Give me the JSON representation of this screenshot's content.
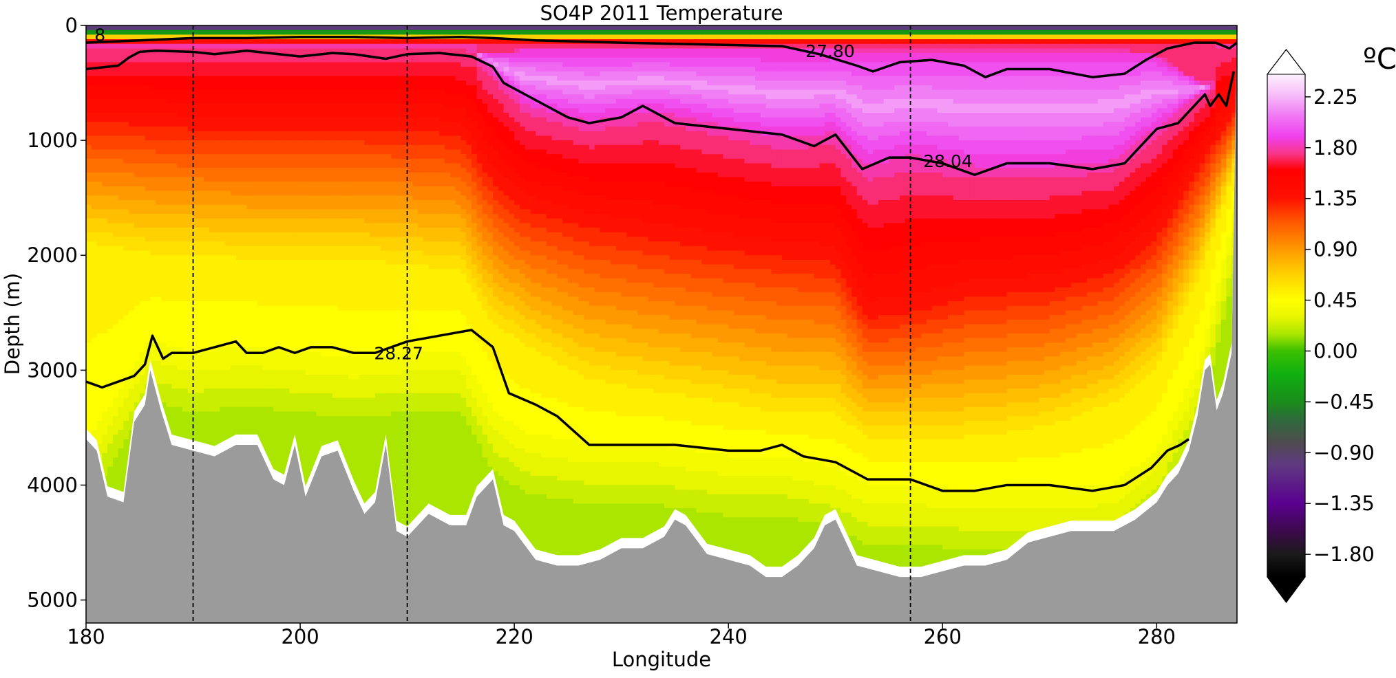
{
  "chart_data": {
    "type": "heatmap",
    "title": "SO4P 2011 Temperature",
    "xlabel": "Longitude",
    "ylabel": "Depth (m)",
    "xlim": [
      180,
      287.5
    ],
    "ylim": [
      5200,
      0
    ],
    "x_ticks": [
      180,
      200,
      220,
      240,
      260,
      280
    ],
    "y_ticks": [
      0,
      1000,
      2000,
      3000,
      4000,
      5000
    ],
    "colorbar": {
      "unit_label": "ºC",
      "ticks": [
        "−1.80",
        "−1.35",
        "−0.90",
        "−0.45",
        "0.00",
        "0.45",
        "0.90",
        "1.35",
        "1.80",
        "2.25"
      ],
      "tick_values": [
        -1.8,
        -1.35,
        -0.9,
        -0.45,
        0.0,
        0.45,
        0.9,
        1.35,
        1.8,
        2.25
      ],
      "range": [
        -2.0,
        2.45
      ],
      "extend": "both",
      "stops": [
        {
          "v": -2.0,
          "c": "#000000"
        },
        {
          "v": -1.8,
          "c": "#1a1a1a"
        },
        {
          "v": -1.6,
          "c": "#3b0a4a"
        },
        {
          "v": -1.35,
          "c": "#5a0090"
        },
        {
          "v": -1.0,
          "c": "#5f3a80"
        },
        {
          "v": -0.8,
          "c": "#4d4d4d"
        },
        {
          "v": -0.6,
          "c": "#2d6b3a"
        },
        {
          "v": -0.45,
          "c": "#1a8c1a"
        },
        {
          "v": -0.2,
          "c": "#10b010"
        },
        {
          "v": 0.0,
          "c": "#3cbf00"
        },
        {
          "v": 0.15,
          "c": "#aae600"
        },
        {
          "v": 0.3,
          "c": "#e8f500"
        },
        {
          "v": 0.45,
          "c": "#ffff00"
        },
        {
          "v": 0.7,
          "c": "#ffcc00"
        },
        {
          "v": 0.9,
          "c": "#ff9900"
        },
        {
          "v": 1.15,
          "c": "#ff5500"
        },
        {
          "v": 1.35,
          "c": "#ff1100"
        },
        {
          "v": 1.6,
          "c": "#ff0000"
        },
        {
          "v": 1.75,
          "c": "#f8368a"
        },
        {
          "v": 1.9,
          "c": "#f040ee"
        },
        {
          "v": 2.1,
          "c": "#f07ef4"
        },
        {
          "v": 2.25,
          "c": "#f7b8f9"
        },
        {
          "v": 2.45,
          "c": "#fdf1fd"
        }
      ]
    },
    "section_columns": [
      {
        "lon": 180,
        "t_surface": -1.0,
        "pink_top": null,
        "pink_bottom": null,
        "red_bottom": 800,
        "orange_bottom": 1900,
        "yellow_bottom": 3600,
        "bottom": 3600
      },
      {
        "lon": 183,
        "t_surface": -1.0,
        "pink_top": null,
        "pink_bottom": null,
        "red_bottom": 800,
        "orange_bottom": 1950,
        "yellow_bottom": 3150,
        "bottom": 4150
      },
      {
        "lon": 186,
        "t_surface": -1.0,
        "pink_top": null,
        "pink_bottom": null,
        "red_bottom": 820,
        "orange_bottom": 2000,
        "yellow_bottom": 2700,
        "bottom": 3050
      },
      {
        "lon": 190,
        "t_surface": -1.0,
        "pink_top": null,
        "pink_bottom": null,
        "red_bottom": 850,
        "orange_bottom": 2000,
        "yellow_bottom": 2800,
        "bottom": 3700
      },
      {
        "lon": 195,
        "t_surface": -1.0,
        "pink_top": null,
        "pink_bottom": null,
        "red_bottom": 850,
        "orange_bottom": 2050,
        "yellow_bottom": 2750,
        "bottom": 3650
      },
      {
        "lon": 200,
        "t_surface": -1.0,
        "pink_top": null,
        "pink_bottom": null,
        "red_bottom": 850,
        "orange_bottom": 2050,
        "yellow_bottom": 2800,
        "bottom": 4100
      },
      {
        "lon": 205,
        "t_surface": -1.0,
        "pink_top": null,
        "pink_bottom": null,
        "red_bottom": 850,
        "orange_bottom": 2050,
        "yellow_bottom": 2850,
        "bottom": 4250
      },
      {
        "lon": 210,
        "t_surface": -1.0,
        "pink_top": null,
        "pink_bottom": null,
        "red_bottom": 850,
        "orange_bottom": 2100,
        "yellow_bottom": 2800,
        "bottom": 4450
      },
      {
        "lon": 215,
        "t_surface": -1.0,
        "pink_top": null,
        "pink_bottom": null,
        "red_bottom": 900,
        "orange_bottom": 2150,
        "yellow_bottom": 2800,
        "bottom": 4350
      },
      {
        "lon": 218,
        "t_surface": -1.0,
        "pink_top": 250,
        "pink_bottom": 400,
        "red_bottom": 1300,
        "orange_bottom": 2600,
        "yellow_bottom": 3300,
        "bottom": 4200
      },
      {
        "lon": 221,
        "t_surface": -1.0,
        "pink_top": 200,
        "pink_bottom": 700,
        "red_bottom": 1550,
        "orange_bottom": 2800,
        "yellow_bottom": 3500,
        "bottom": 4450
      },
      {
        "lon": 227,
        "t_surface": -1.0,
        "pink_top": 200,
        "pink_bottom": 850,
        "red_bottom": 1700,
        "orange_bottom": 3100,
        "yellow_bottom": 3600,
        "bottom": 4700
      },
      {
        "lon": 233,
        "t_surface": -1.0,
        "pink_top": 200,
        "pink_bottom": 750,
        "red_bottom": 1800,
        "orange_bottom": 3200,
        "yellow_bottom": 3600,
        "bottom": 4450
      },
      {
        "lon": 240,
        "t_surface": -1.0,
        "pink_top": 200,
        "pink_bottom": 900,
        "red_bottom": 1900,
        "orange_bottom": 3300,
        "yellow_bottom": 3700,
        "bottom": 4650
      },
      {
        "lon": 245,
        "t_surface": -1.0,
        "pink_top": 200,
        "pink_bottom": 1000,
        "red_bottom": 1950,
        "orange_bottom": 3400,
        "yellow_bottom": 3700,
        "bottom": 4800
      },
      {
        "lon": 250,
        "t_surface": -1.0,
        "pink_top": 200,
        "pink_bottom": 950,
        "red_bottom": 2000,
        "orange_bottom": 3400,
        "yellow_bottom": 3800,
        "bottom": 4350
      },
      {
        "lon": 253,
        "t_surface": -1.0,
        "pink_top": 200,
        "pink_bottom": 1250,
        "red_bottom": 2500,
        "orange_bottom": 3600,
        "yellow_bottom": 3950,
        "bottom": 4700
      },
      {
        "lon": 257,
        "t_surface": -1.0,
        "pink_top": 200,
        "pink_bottom": 1150,
        "red_bottom": 2450,
        "orange_bottom": 3600,
        "yellow_bottom": 3950,
        "bottom": 4800
      },
      {
        "lon": 263,
        "t_surface": -1.0,
        "pink_top": 200,
        "pink_bottom": 1250,
        "red_bottom": 2300,
        "orange_bottom": 3600,
        "yellow_bottom": 4000,
        "bottom": 4750
      },
      {
        "lon": 270,
        "t_surface": -1.0,
        "pink_top": 200,
        "pink_bottom": 1250,
        "red_bottom": 2250,
        "orange_bottom": 3500,
        "yellow_bottom": 4000,
        "bottom": 4450
      },
      {
        "lon": 276,
        "t_surface": -1.0,
        "pink_top": 200,
        "pink_bottom": 1200,
        "red_bottom": 2100,
        "orange_bottom": 3300,
        "yellow_bottom": 3950,
        "bottom": 4400
      },
      {
        "lon": 280,
        "t_surface": -1.0,
        "pink_top": 250,
        "pink_bottom": 900,
        "red_bottom": 1800,
        "orange_bottom": 3000,
        "yellow_bottom": 3650,
        "bottom": 4150
      },
      {
        "lon": 284,
        "t_surface": -1.0,
        "pink_top": 500,
        "pink_bottom": 600,
        "red_bottom": 1200,
        "orange_bottom": 2200,
        "yellow_bottom": 2900,
        "bottom": 3100
      },
      {
        "lon": 287.5,
        "t_surface": -1.0,
        "pink_top": null,
        "pink_bottom": null,
        "red_bottom": 700,
        "orange_bottom": 1200,
        "yellow_bottom": 1500,
        "bottom": 1500
      }
    ],
    "bathymetry": {
      "lon": [
        180,
        181,
        182,
        183.5,
        184.5,
        185.5,
        186,
        187,
        188,
        190,
        192,
        194,
        196,
        197.5,
        198.5,
        199.5,
        200.5,
        202,
        203.5,
        205,
        206,
        207,
        208,
        209,
        210,
        212,
        214,
        215.5,
        216.5,
        218,
        219,
        220,
        222,
        224,
        226,
        228,
        230,
        232,
        234,
        235,
        236,
        238,
        240,
        242,
        243.5,
        245,
        246.5,
        248,
        249,
        250,
        251,
        252,
        254,
        256,
        258,
        260,
        262,
        264,
        266,
        268,
        270,
        272,
        274,
        276,
        278,
        280,
        281,
        282,
        283,
        283.8,
        284.5,
        285,
        285.6,
        286.2,
        287,
        287.5
      ],
      "depth": [
        3600,
        3700,
        4100,
        4150,
        3450,
        3300,
        3000,
        3350,
        3650,
        3700,
        3750,
        3650,
        3650,
        3950,
        4000,
        3650,
        4100,
        3750,
        3700,
        4050,
        4250,
        4150,
        3650,
        4400,
        4450,
        4250,
        4350,
        4350,
        4100,
        3950,
        4350,
        4400,
        4650,
        4700,
        4700,
        4650,
        4550,
        4550,
        4450,
        4300,
        4350,
        4600,
        4650,
        4700,
        4800,
        4800,
        4700,
        4550,
        4350,
        4300,
        4500,
        4700,
        4750,
        4800,
        4800,
        4750,
        4700,
        4700,
        4650,
        4500,
        4450,
        4400,
        4400,
        4400,
        4300,
        4150,
        4000,
        3900,
        3700,
        3400,
        3000,
        2950,
        3350,
        3200,
        2850,
        0
      ]
    },
    "contour_labels": [
      {
        "text": "28.27",
        "lon": 209.2,
        "depth": 2850
      },
      {
        "text": "27.80",
        "lon": 249.5,
        "depth": 220
      },
      {
        "text": "28.04",
        "lon": 260.5,
        "depth": 1180
      },
      {
        "text": "8",
        "lon": 181.3,
        "depth": 80
      }
    ],
    "contours": [
      {
        "label": "28.27",
        "lon": [
          180,
          181.5,
          183,
          184.5,
          185.5,
          186.2,
          187.2,
          188,
          190,
          192,
          194,
          195,
          196.5,
          198,
          199.5,
          201,
          203,
          205,
          207,
          210,
          213,
          216,
          218,
          219.5,
          222,
          224,
          227,
          230,
          235,
          240,
          243,
          245,
          247,
          250,
          253,
          257,
          260,
          263,
          266,
          270,
          274,
          277,
          279.5,
          281,
          282.2,
          283
        ],
        "depth": [
          3100,
          3150,
          3100,
          3050,
          2950,
          2700,
          2900,
          2850,
          2850,
          2800,
          2750,
          2850,
          2850,
          2800,
          2850,
          2800,
          2800,
          2850,
          2850,
          2750,
          2700,
          2650,
          2800,
          3200,
          3300,
          3400,
          3650,
          3650,
          3650,
          3700,
          3700,
          3650,
          3750,
          3800,
          3950,
          3950,
          4050,
          4050,
          4000,
          4000,
          4050,
          4000,
          3850,
          3700,
          3650,
          3600
        ]
      },
      {
        "label": "28.04",
        "lon": [
          180,
          183,
          184,
          185,
          186.5,
          190,
          192,
          195,
          198,
          200,
          203,
          205,
          208,
          210,
          213,
          216,
          218,
          219,
          221,
          223,
          225,
          227,
          230,
          232,
          235,
          240,
          245,
          248,
          250,
          252.5,
          255,
          257,
          260,
          263,
          266,
          270,
          274,
          277,
          280,
          282,
          283.5,
          284.5,
          285,
          285.8,
          286.5,
          287.2
        ],
        "depth": [
          380,
          350,
          280,
          230,
          220,
          230,
          250,
          220,
          250,
          270,
          240,
          250,
          290,
          250,
          240,
          270,
          360,
          500,
          600,
          700,
          800,
          850,
          800,
          700,
          850,
          900,
          950,
          1050,
          950,
          1250,
          1150,
          1150,
          1200,
          1300,
          1200,
          1200,
          1250,
          1200,
          900,
          850,
          700,
          600,
          700,
          600,
          700,
          400
        ]
      },
      {
        "label": "27.80",
        "lon": [
          180,
          185,
          190,
          195,
          200,
          205,
          210,
          215,
          218,
          222,
          226,
          230,
          235,
          240,
          245,
          248.5,
          252,
          253.5,
          256,
          259,
          262,
          264,
          266,
          270,
          274,
          277,
          279,
          281,
          283.5,
          285.5,
          286.8,
          287.5
        ],
        "depth": [
          150,
          130,
          110,
          110,
          100,
          100,
          110,
          100,
          110,
          130,
          140,
          150,
          160,
          170,
          180,
          250,
          350,
          400,
          320,
          300,
          350,
          450,
          380,
          380,
          450,
          420,
          300,
          200,
          150,
          150,
          200,
          150
        ]
      }
    ],
    "dashed_lines_lon": [
      190,
      210,
      257
    ]
  }
}
